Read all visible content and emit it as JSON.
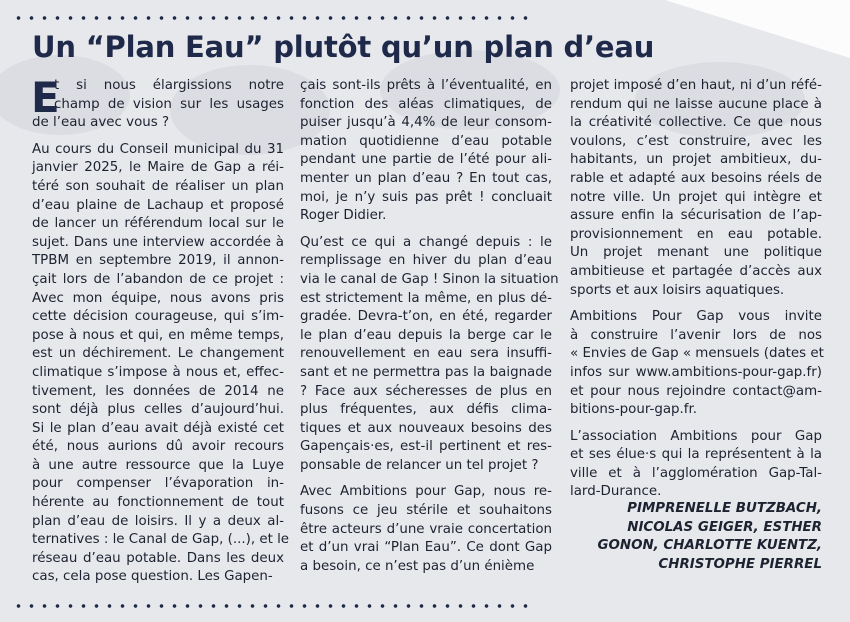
{
  "title": "Un “Plan Eau” plutôt qu’un plan d’eau",
  "columns": [
    {
      "paragraphs": [
        {
          "dropcap": "E",
          "lines": [
            "t si nous élargissions notre",
            "champ de vision sur les usages",
            "de l’eau avec vous ?"
          ]
        },
        {
          "lines": [
            "Au cours du Conseil municipal du 31",
            "janvier 2025, le Maire de Gap a réi-",
            "téré son souhait de réaliser un plan",
            "d’eau plaine de Lachaup et proposé",
            "de lancer un référendum local sur le",
            "sujet. Dans une interview accordée à",
            "TPBM en septembre 2019, il annon-",
            "çait lors de l’abandon de ce projet :",
            "Avec mon équipe, nous avons pris",
            "cette décision courageuse, qui s’im-",
            "pose à nous et qui, en même temps,",
            "est un déchirement. Le changement",
            "climatique s’impose à nous et, effec-",
            "tivement, les données de 2014 ne",
            "sont déjà plus celles d’aujourd’hui.",
            "Si le plan d’eau avait déjà existé cet",
            "été, nous aurions dû avoir recours",
            "à une autre ressource que la Luye",
            "pour compenser l’évaporation in-",
            "hérente au fonctionnement de tout",
            "plan d’eau de loisirs. Il y a deux al-",
            "ternatives : le Canal de Gap, (...), et le",
            "réseau d’eau potable. Dans les deux",
            "cas, cela pose question. Les Gapen-"
          ]
        }
      ]
    },
    {
      "paragraphs": [
        {
          "lines": [
            "çais sont-ils prêts à l’éventualité, en",
            "fonction des aléas climatiques, de",
            "puiser jusqu’à 4,4% de leur consom-",
            "mation quotidienne d’eau potable",
            "pendant une partie de l’été pour ali-",
            "menter un plan d’eau ? En tout cas,",
            "moi, je n’y suis pas prêt ! concluait",
            "Roger Didier."
          ]
        },
        {
          "lines": [
            "Qu’est ce qui a changé depuis : le",
            "remplissage en hiver du plan d’eau",
            "via le canal de Gap ! Sinon la situation",
            "est strictement la même, en plus dé-",
            "gradée. Devra-t’on, en été, regarder",
            "le plan d’eau depuis la berge car le",
            "renouvellement en eau sera insuffi-",
            "sant et ne permettra pas la baignade",
            "? Face aux sécheresses de plus en",
            "plus fréquentes, aux défis clima-",
            "tiques et aux nouveaux besoins des",
            "Gapençais·es, est-il pertinent et res-",
            "ponsable de relancer un tel projet ?"
          ]
        },
        {
          "lines": [
            "Avec Ambitions pour Gap, nous re-",
            "fusons ce jeu stérile et souhaitons",
            "être acteurs d’une vraie concertation",
            "et d’un vrai “Plan Eau”. Ce dont Gap",
            "a besoin, ce n’est pas d’un énième"
          ]
        }
      ]
    },
    {
      "paragraphs": [
        {
          "lines": [
            "projet imposé d’en haut, ni d’un réfé-",
            "rendum qui ne laisse aucune place à",
            "la créativité collective. Ce que nous",
            "voulons, c’est construire, avec les",
            "habitants, un projet ambitieux, du-",
            "rable et adapté aux besoins réels de",
            "notre ville. Un projet qui intègre et",
            "assure enfin la sécurisation de l’ap-",
            "provisionnement en eau potable.",
            "Un projet menant une politique",
            "ambitieuse et partagée d’accès aux",
            "sports et aux loisirs aquatiques."
          ]
        },
        {
          "lines": [
            "Ambitions Pour Gap vous invite",
            "à construire l’avenir lors de nos",
            "« Envies de Gap « mensuels (dates et",
            "infos sur www.ambitions-pour-gap.fr)",
            "et pour nous rejoindre contact@am-",
            "bitions-pour-gap.fr."
          ]
        },
        {
          "lines": [
            "L’association Ambitions pour Gap",
            "et ses élue·s qui la représentent à la",
            "ville et à l’agglomération Gap-Tal-",
            "lard-Durance."
          ]
        }
      ]
    }
  ],
  "signature": [
    "PIMPRENELLE BUTZBACH,",
    "NICOLAS GEIGER, ESTHER",
    "GONON, CHARLOTTE KUENTZ,",
    "CHRISTOPHE PIERREL"
  ]
}
